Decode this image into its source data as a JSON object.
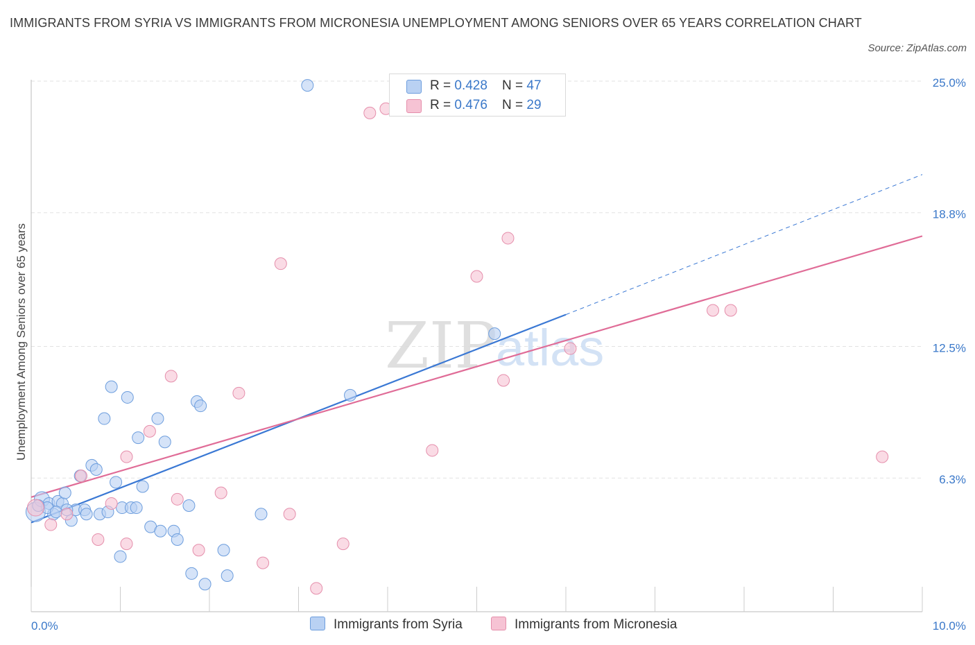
{
  "title": "IMMIGRANTS FROM SYRIA VS IMMIGRANTS FROM MICRONESIA UNEMPLOYMENT AMONG SENIORS OVER 65 YEARS CORRELATION CHART",
  "source": "Source: ZipAtlas.com",
  "watermark": {
    "zip": "ZIP",
    "atlas": "atlas"
  },
  "colors": {
    "syria": "#3a78d4",
    "syria_fill": "#b9d1f3",
    "micronesia": "#e06c97",
    "micronesia_fill": "#f6c3d4",
    "tick": "#3a78c9",
    "grid": "#e2e2e2"
  },
  "legend": {
    "syria": {
      "r_label": "R = ",
      "r_value": "0.428",
      "n_label": "N = ",
      "n_value": "47"
    },
    "micronesia": {
      "r_label": "R = ",
      "r_value": "0.476",
      "n_label": "N = ",
      "n_value": "29"
    }
  },
  "bottom_legend": {
    "syria": "Immigrants from Syria",
    "micronesia": "Immigrants from Micronesia"
  },
  "chart_data": {
    "type": "scatter",
    "title": "IMMIGRANTS FROM SYRIA VS IMMIGRANTS FROM MICRONESIA UNEMPLOYMENT AMONG SENIORS OVER 65 YEARS CORRELATION CHART",
    "xlabel": "",
    "ylabel": "Unemployment Among Seniors over 65 years",
    "xlim": [
      0,
      10
    ],
    "ylim": [
      0,
      25
    ],
    "x_tick_labels": [
      {
        "value": 0,
        "label": "0.0%"
      },
      {
        "value": 10,
        "label": "10.0%"
      }
    ],
    "y_tick_labels": [
      {
        "value": 6.3,
        "label": "6.3%"
      },
      {
        "value": 12.5,
        "label": "12.5%"
      },
      {
        "value": 18.8,
        "label": "18.8%"
      },
      {
        "value": 25.0,
        "label": "25.0%"
      }
    ],
    "series": [
      {
        "name": "Immigrants from Syria",
        "points": [
          {
            "x": 0.05,
            "y": 4.7,
            "s": 14
          },
          {
            "x": 0.12,
            "y": 5.3,
            "s": 11
          },
          {
            "x": 0.2,
            "y": 5.1
          },
          {
            "x": 0.25,
            "y": 4.6
          },
          {
            "x": 0.3,
            "y": 5.2
          },
          {
            "x": 0.35,
            "y": 5.1
          },
          {
            "x": 0.38,
            "y": 5.6
          },
          {
            "x": 0.45,
            "y": 4.3
          },
          {
            "x": 0.5,
            "y": 4.8
          },
          {
            "x": 0.6,
            "y": 4.8
          },
          {
            "x": 0.62,
            "y": 4.6
          },
          {
            "x": 0.68,
            "y": 6.9
          },
          {
            "x": 0.73,
            "y": 6.7
          },
          {
            "x": 0.77,
            "y": 4.6
          },
          {
            "x": 0.82,
            "y": 9.1
          },
          {
            "x": 0.86,
            "y": 4.7
          },
          {
            "x": 0.9,
            "y": 10.6
          },
          {
            "x": 0.95,
            "y": 6.1
          },
          {
            "x": 1.0,
            "y": 2.6
          },
          {
            "x": 1.02,
            "y": 4.9
          },
          {
            "x": 1.08,
            "y": 10.1
          },
          {
            "x": 1.12,
            "y": 4.9
          },
          {
            "x": 1.18,
            "y": 4.9
          },
          {
            "x": 1.2,
            "y": 8.2
          },
          {
            "x": 1.25,
            "y": 5.9
          },
          {
            "x": 1.34,
            "y": 4.0
          },
          {
            "x": 1.42,
            "y": 9.1
          },
          {
            "x": 1.45,
            "y": 3.8
          },
          {
            "x": 1.5,
            "y": 8.0
          },
          {
            "x": 1.6,
            "y": 3.8
          },
          {
            "x": 1.64,
            "y": 3.4
          },
          {
            "x": 1.77,
            "y": 5.0
          },
          {
            "x": 1.8,
            "y": 1.8
          },
          {
            "x": 1.86,
            "y": 9.9
          },
          {
            "x": 1.9,
            "y": 9.7
          },
          {
            "x": 1.95,
            "y": 1.3
          },
          {
            "x": 2.16,
            "y": 2.9
          },
          {
            "x": 2.2,
            "y": 1.7
          },
          {
            "x": 2.58,
            "y": 4.6
          },
          {
            "x": 3.1,
            "y": 24.8
          },
          {
            "x": 3.58,
            "y": 10.2
          },
          {
            "x": 5.2,
            "y": 13.1
          },
          {
            "x": 0.18,
            "y": 4.9
          },
          {
            "x": 0.55,
            "y": 6.4
          },
          {
            "x": 0.08,
            "y": 5.0
          },
          {
            "x": 0.4,
            "y": 4.8
          },
          {
            "x": 0.28,
            "y": 4.7
          }
        ],
        "trend": {
          "x0": 0.0,
          "y0": 4.2,
          "x1": 6.0,
          "y1": 14.0,
          "dash_to": {
            "x": 10.0,
            "y": 20.6
          }
        }
      },
      {
        "name": "Immigrants from Micronesia",
        "points": [
          {
            "x": 0.05,
            "y": 4.9,
            "s": 12
          },
          {
            "x": 0.22,
            "y": 4.1
          },
          {
            "x": 0.4,
            "y": 4.6
          },
          {
            "x": 0.56,
            "y": 6.4
          },
          {
            "x": 0.75,
            "y": 3.4
          },
          {
            "x": 0.9,
            "y": 5.1
          },
          {
            "x": 1.07,
            "y": 3.2
          },
          {
            "x": 1.07,
            "y": 7.3
          },
          {
            "x": 1.33,
            "y": 8.5
          },
          {
            "x": 1.57,
            "y": 11.1
          },
          {
            "x": 1.64,
            "y": 5.3
          },
          {
            "x": 1.88,
            "y": 2.9
          },
          {
            "x": 2.13,
            "y": 5.6
          },
          {
            "x": 2.33,
            "y": 10.3
          },
          {
            "x": 2.6,
            "y": 2.3
          },
          {
            "x": 2.8,
            "y": 16.4
          },
          {
            "x": 2.9,
            "y": 4.6
          },
          {
            "x": 3.2,
            "y": 1.1
          },
          {
            "x": 3.5,
            "y": 3.2
          },
          {
            "x": 3.8,
            "y": 23.5
          },
          {
            "x": 3.98,
            "y": 23.7
          },
          {
            "x": 4.5,
            "y": 7.6
          },
          {
            "x": 5.0,
            "y": 15.8
          },
          {
            "x": 5.3,
            "y": 10.9
          },
          {
            "x": 5.35,
            "y": 17.6
          },
          {
            "x": 6.05,
            "y": 12.4
          },
          {
            "x": 7.65,
            "y": 14.2
          },
          {
            "x": 7.85,
            "y": 14.2
          },
          {
            "x": 9.55,
            "y": 7.3
          }
        ],
        "trend": {
          "x0": 0.0,
          "y0": 5.4,
          "x1": 10.0,
          "y1": 17.7
        }
      }
    ]
  }
}
